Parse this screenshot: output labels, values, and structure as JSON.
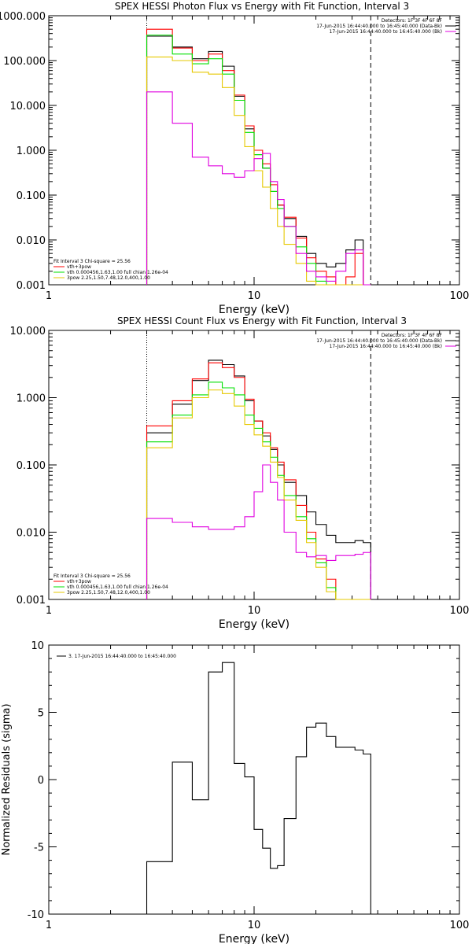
{
  "chart_data": [
    {
      "type": "line",
      "title": "SPEX HESSI Photon Flux vs Energy with Fit Function, Interval 3",
      "xlabel": "Energy (keV)",
      "ylabel": "",
      "xscale": "log",
      "yscale": "log",
      "xlim": [
        1,
        100
      ],
      "ylim": [
        0.001,
        1000
      ],
      "x_tick_labels": [
        "1",
        "10",
        "100"
      ],
      "y_tick_labels": [
        "0.001",
        "0.010",
        "0.100",
        "1.000",
        "10.000",
        "100.000",
        "1000.000"
      ],
      "vlines": [
        {
          "x": 3.0,
          "style": "dotted"
        },
        {
          "x": 37.0,
          "style": "dashed"
        }
      ],
      "bin_edges": [
        3.0,
        4.0,
        5.0,
        6.0,
        7.0,
        8.0,
        9.0,
        10.0,
        11.0,
        12.0,
        13.0,
        14.0,
        16.0,
        18.0,
        20.0,
        22.5,
        25.0,
        28.0,
        31.0,
        34.0,
        37.0
      ],
      "series": [
        {
          "color": "#000000",
          "values": [
            350,
            200,
            110,
            160,
            75,
            16,
            3.0,
            0.8,
            0.4,
            0.12,
            0.06,
            0.03,
            0.012,
            0.005,
            0.003,
            0.0025,
            0.003,
            0.006,
            0.01,
            0.001
          ]
        },
        {
          "color": "#ff0000",
          "values": [
            500,
            190,
            100,
            140,
            60,
            17,
            3.5,
            1.0,
            0.5,
            0.17,
            0.06,
            0.032,
            0.011,
            0.004,
            0.002,
            0.0015,
            0.001,
            0.0015,
            0.005,
            0.001
          ]
        },
        {
          "color": "#00e000",
          "values": [
            370,
            140,
            85,
            110,
            50,
            13,
            2.5,
            0.8,
            0.4,
            0.12,
            0.05,
            0.02,
            0.007,
            0.003,
            0.0012,
            0.001,
            0.001,
            0.001,
            0.001,
            0.001
          ]
        },
        {
          "color": "#e6c800",
          "values": [
            120,
            100,
            55,
            50,
            25,
            6,
            1.2,
            0.35,
            0.15,
            0.05,
            0.02,
            0.008,
            0.003,
            0.0012,
            0.001,
            0.001,
            0.001,
            0.001,
            0.001,
            0.001
          ]
        },
        {
          "color": "#e000e0",
          "values": [
            20,
            4.0,
            0.7,
            0.45,
            0.3,
            0.25,
            0.35,
            0.65,
            0.85,
            0.2,
            0.08,
            0.02,
            0.005,
            0.002,
            0.0015,
            0.0012,
            0.002,
            0.005,
            0.006,
            0.001
          ]
        }
      ],
      "info_right": [
        {
          "text": "Detectors: 1F 3F 4F 6F 8F",
          "color": ""
        },
        {
          "text": "17-Jun-2015 16:44:40.000 to 16:45:40.000 (Data-Bk)",
          "color": "#000000"
        },
        {
          "text": "17-Jun-2015 16:44:40.000 to 16:45:40.000 (Bk)",
          "color": "#e000e0"
        }
      ],
      "info_left": [
        {
          "text": "Fit Interval 3   Chi-square = 25.56",
          "color": ""
        },
        {
          "text": "vth+3pow",
          "color": "#ff0000"
        },
        {
          "text": "vth 0.000456,1.63,1.00   full chian 1.26e-04",
          "color": "#00e000"
        },
        {
          "text": "3pow 2.25,1.50,7.48,12.0,400,1.00",
          "color": "#e6c800"
        }
      ]
    },
    {
      "type": "line",
      "title": "SPEX HESSI Count Flux vs Energy with Fit Function, Interval 3",
      "xlabel": "Energy (keV)",
      "ylabel": "",
      "xscale": "log",
      "yscale": "log",
      "xlim": [
        1,
        100
      ],
      "ylim": [
        0.001,
        10
      ],
      "x_tick_labels": [
        "1",
        "10",
        "100"
      ],
      "y_tick_labels": [
        "0.001",
        "0.010",
        "0.100",
        "1.000",
        "10.000"
      ],
      "vlines": [
        {
          "x": 3.0,
          "style": "dotted"
        },
        {
          "x": 37.0,
          "style": "dashed"
        }
      ],
      "bin_edges": [
        3.0,
        4.0,
        5.0,
        6.0,
        7.0,
        8.0,
        9.0,
        10.0,
        11.0,
        12.0,
        13.0,
        14.0,
        16.0,
        18.0,
        20.0,
        22.5,
        25.0,
        28.0,
        31.0,
        34.0,
        37.0
      ],
      "series": [
        {
          "color": "#000000",
          "values": [
            0.3,
            0.8,
            1.8,
            3.6,
            3.1,
            2.1,
            0.9,
            0.45,
            0.27,
            0.17,
            0.1,
            0.055,
            0.035,
            0.02,
            0.013,
            0.009,
            0.007,
            0.007,
            0.0075,
            0.007
          ]
        },
        {
          "color": "#ff0000",
          "values": [
            0.38,
            0.9,
            1.9,
            3.3,
            2.8,
            2.0,
            0.95,
            0.45,
            0.3,
            0.18,
            0.11,
            0.06,
            0.025,
            0.01,
            0.004,
            0.002,
            0.001,
            0.001,
            0.001,
            0.001
          ]
        },
        {
          "color": "#00e000",
          "values": [
            0.22,
            0.55,
            1.1,
            1.7,
            1.4,
            1.1,
            0.55,
            0.35,
            0.22,
            0.13,
            0.07,
            0.035,
            0.017,
            0.008,
            0.0035,
            0.0015,
            0.001,
            0.001,
            0.001,
            0.001
          ]
        },
        {
          "color": "#e6c800",
          "values": [
            0.18,
            0.5,
            1.0,
            1.3,
            1.15,
            0.75,
            0.4,
            0.28,
            0.19,
            0.11,
            0.065,
            0.03,
            0.015,
            0.007,
            0.003,
            0.0013,
            0.001,
            0.001,
            0.001,
            0.001
          ]
        },
        {
          "color": "#e000e0",
          "values": [
            0.016,
            0.014,
            0.012,
            0.011,
            0.011,
            0.012,
            0.017,
            0.04,
            0.1,
            0.055,
            0.03,
            0.01,
            0.005,
            0.0043,
            0.0045,
            0.0038,
            0.0045,
            0.0045,
            0.0047,
            0.005
          ]
        }
      ],
      "info_right": [
        {
          "text": "Detectors: 1F 3F 4F 6F 8F",
          "color": ""
        },
        {
          "text": "17-Jun-2015 16:44:40.000 to 16:45:40.000 (Data-Bk)",
          "color": "#000000"
        },
        {
          "text": "17-Jun-2015 16:44:40.000 to 16:45:40.000 (Bk)",
          "color": "#e000e0"
        }
      ],
      "info_left": [
        {
          "text": "Fit Interval 3   Chi-square = 25.56",
          "color": ""
        },
        {
          "text": "vth+3pow",
          "color": "#ff0000"
        },
        {
          "text": "vth 0.000456,1.63,1.00   full chian 1.26e-04",
          "color": "#00e000"
        },
        {
          "text": "3pow 2.25,1.50,7.48,12.0,400,1.00",
          "color": "#e6c800"
        }
      ]
    },
    {
      "type": "line",
      "title": "",
      "xlabel": "Energy (keV)",
      "ylabel": "Normalized Residuals (sigma)",
      "xscale": "log",
      "yscale": "linear",
      "xlim": [
        1,
        100
      ],
      "ylim": [
        -10,
        10
      ],
      "x_tick_labels": [
        "1",
        "10",
        "100"
      ],
      "y_tick_labels": [
        "-10",
        "-5",
        "0",
        "5",
        "10"
      ],
      "vlines": [],
      "bin_edges": [
        3.0,
        4.0,
        5.0,
        6.0,
        7.0,
        8.0,
        9.0,
        10.0,
        11.0,
        12.0,
        13.0,
        14.0,
        16.0,
        18.0,
        20.0,
        22.5,
        25.0,
        28.0,
        31.0,
        34.0,
        37.0
      ],
      "series": [
        {
          "color": "#000000",
          "values": [
            -6.1,
            1.3,
            -1.5,
            8.0,
            8.7,
            1.2,
            0.2,
            -3.7,
            -5.1,
            -6.6,
            -6.4,
            -2.9,
            1.7,
            3.9,
            4.2,
            3.2,
            2.4,
            2.4,
            2.2,
            1.9
          ]
        }
      ],
      "info_right": [],
      "info_left": [],
      "legend": [
        {
          "text": "3. 17-Jun-2015 16:44:40.000 to 16:45:40.000",
          "color": "#000000"
        }
      ]
    }
  ]
}
